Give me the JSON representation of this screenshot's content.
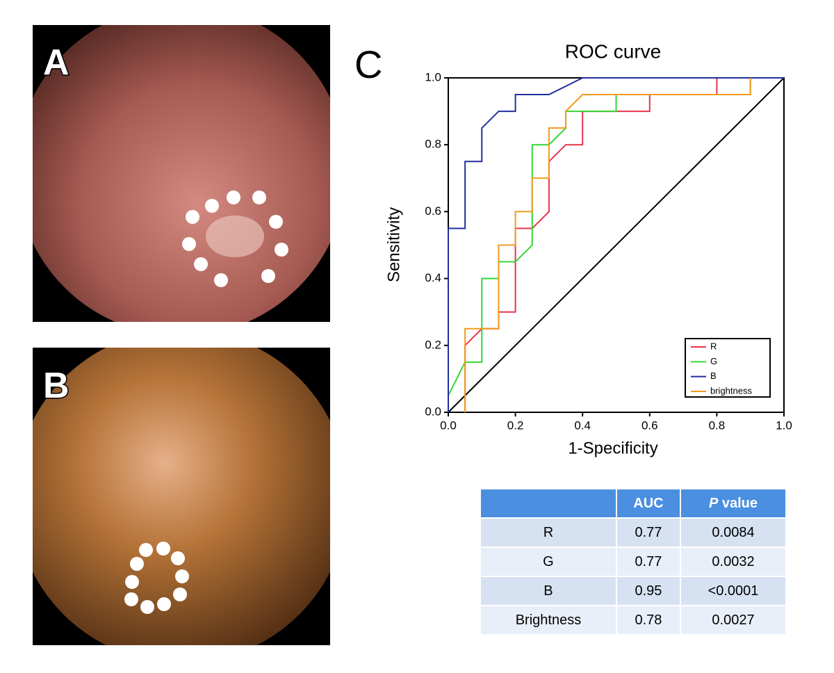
{
  "panels": [
    "A",
    "B",
    "C"
  ],
  "chart_data": {
    "type": "line",
    "title": "ROC curve",
    "x_label": "1-Specificity",
    "y_label": "Sensitivity",
    "xlim": [
      0,
      1
    ],
    "ylim": [
      0,
      1
    ],
    "xticks": [
      {
        "value": 0,
        "label": "0.0"
      },
      0.2,
      0.4,
      0.6,
      0.8,
      {
        "value": 1,
        "label": "1.0"
      }
    ],
    "yticks": [
      {
        "value": 0,
        "label": "0.0"
      },
      0.2,
      0.4,
      0.6,
      0.8,
      {
        "value": 1,
        "label": "1.0"
      }
    ],
    "legend": "lower right",
    "diagonal": true,
    "series": [
      {
        "name": "R",
        "color": "#e8334a",
        "x": [
          0.05,
          0.05,
          0.1,
          0.15,
          0.15,
          0.2,
          0.2,
          0.25,
          0.3,
          0.3,
          0.35,
          0.4,
          0.4,
          0.6,
          0.6,
          0.8,
          0.8,
          1.0
        ],
        "values": [
          0,
          0.2,
          0.25,
          0.25,
          0.3,
          0.3,
          0.55,
          0.55,
          0.6,
          0.75,
          0.8,
          0.8,
          0.9,
          0.9,
          0.95,
          0.95,
          1.0,
          1.0
        ]
      },
      {
        "name": "G",
        "color": "#33d633",
        "x": [
          0,
          0,
          0.05,
          0.1,
          0.1,
          0.15,
          0.15,
          0.2,
          0.25,
          0.25,
          0.3,
          0.35,
          0.35,
          0.5,
          0.5,
          0.9,
          0.9,
          1.0
        ],
        "values": [
          0,
          0.05,
          0.15,
          0.15,
          0.4,
          0.4,
          0.45,
          0.45,
          0.5,
          0.8,
          0.8,
          0.85,
          0.9,
          0.9,
          0.95,
          0.95,
          1.0,
          1.0
        ]
      },
      {
        "name": "B",
        "color": "#1f2f9e",
        "x": [
          0,
          0,
          0.05,
          0.05,
          0.1,
          0.1,
          0.15,
          0.2,
          0.2,
          0.3,
          0.4,
          1.0
        ],
        "values": [
          0,
          0.55,
          0.55,
          0.75,
          0.75,
          0.85,
          0.9,
          0.9,
          0.95,
          0.95,
          1.0,
          1.0
        ]
      },
      {
        "name": "brightness",
        "color": "#f39a1e",
        "x": [
          0.05,
          0.05,
          0.15,
          0.15,
          0.2,
          0.2,
          0.25,
          0.25,
          0.3,
          0.3,
          0.35,
          0.35,
          0.4,
          0.9,
          0.9
        ],
        "values": [
          0,
          0.25,
          0.25,
          0.5,
          0.5,
          0.6,
          0.6,
          0.7,
          0.7,
          0.85,
          0.85,
          0.9,
          0.95,
          0.95,
          1.0
        ]
      }
    ]
  },
  "table": {
    "header": [
      "AUC",
      [
        "P",
        "value"
      ]
    ],
    "rows": [
      [
        "R",
        "0.77",
        "0.0084"
      ],
      [
        "G",
        "0.77",
        "0.0032"
      ],
      [
        "B",
        "0.95",
        "<0.0001"
      ],
      [
        "Brightness",
        "0.78",
        "0.0027"
      ]
    ]
  }
}
